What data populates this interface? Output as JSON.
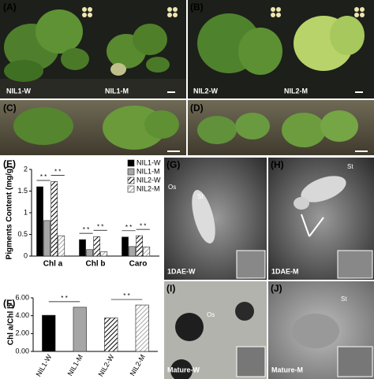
{
  "panels": {
    "A": {
      "label": "(A)",
      "texts": [
        "NIL1-W",
        "NIL1-M"
      ]
    },
    "B": {
      "label": "(B)",
      "texts": [
        "NIL2-W",
        "NIL2-M"
      ]
    },
    "C": {
      "label": "(C)"
    },
    "D": {
      "label": "(D)"
    },
    "E": {
      "label": "(E)"
    },
    "F": {
      "label": "(F)"
    },
    "G": {
      "label": "(G)",
      "texts": [
        "Os",
        "St",
        "1DAE-W"
      ]
    },
    "H": {
      "label": "(H)",
      "texts": [
        "St",
        "1DAE-M"
      ]
    },
    "I": {
      "label": "(I)",
      "texts": [
        "Os",
        "Mature-W"
      ]
    },
    "J": {
      "label": "(J)",
      "texts": [
        "St",
        "Mature-M"
      ]
    }
  },
  "chart_data": [
    {
      "type": "bar",
      "y_label": "Pigments Content (mg/g)",
      "categories": [
        "Chl a",
        "Chl b",
        "Caro"
      ],
      "series": [
        {
          "name": "NIL1-W",
          "color": "#000000",
          "hatched": false,
          "values": [
            1.6,
            0.38,
            0.44
          ]
        },
        {
          "name": "NIL1-M",
          "color": "#a6a6a6",
          "hatched": false,
          "values": [
            0.82,
            0.15,
            0.22
          ]
        },
        {
          "name": "NIL2-W",
          "color": "#000000",
          "hatched": true,
          "values": [
            1.72,
            0.45,
            0.47
          ]
        },
        {
          "name": "NIL2-M",
          "color": "#a6a6a6",
          "hatched": true,
          "values": [
            0.47,
            0.1,
            0.21
          ]
        }
      ],
      "ylim": [
        0,
        2
      ],
      "yticks": [
        0,
        0.5,
        1,
        1.5,
        2
      ],
      "legend": "upper right",
      "annotations": [
        "* *",
        "* *",
        "* *",
        "* *",
        "* *",
        "* *"
      ]
    },
    {
      "type": "bar",
      "y_label": "Chl a/Chl b",
      "categories": [
        "NIL1-W",
        "NIL1-M",
        "NIL2-W",
        "NIL2-M"
      ],
      "values": [
        4.05,
        4.95,
        3.75,
        5.2
      ],
      "colors": [
        "#000000",
        "#a6a6a6",
        "#000000",
        "#a6a6a6"
      ],
      "hatched": [
        false,
        false,
        true,
        true
      ],
      "ylim": [
        0,
        6
      ],
      "yticks": [
        {
          "value": 0,
          "label": "0.00"
        },
        {
          "value": 2,
          "label": "2.00"
        },
        {
          "value": 4,
          "label": "4.00"
        },
        {
          "value": 6,
          "label": "6.00"
        }
      ],
      "annotations": [
        "* *",
        "* *"
      ]
    }
  ]
}
